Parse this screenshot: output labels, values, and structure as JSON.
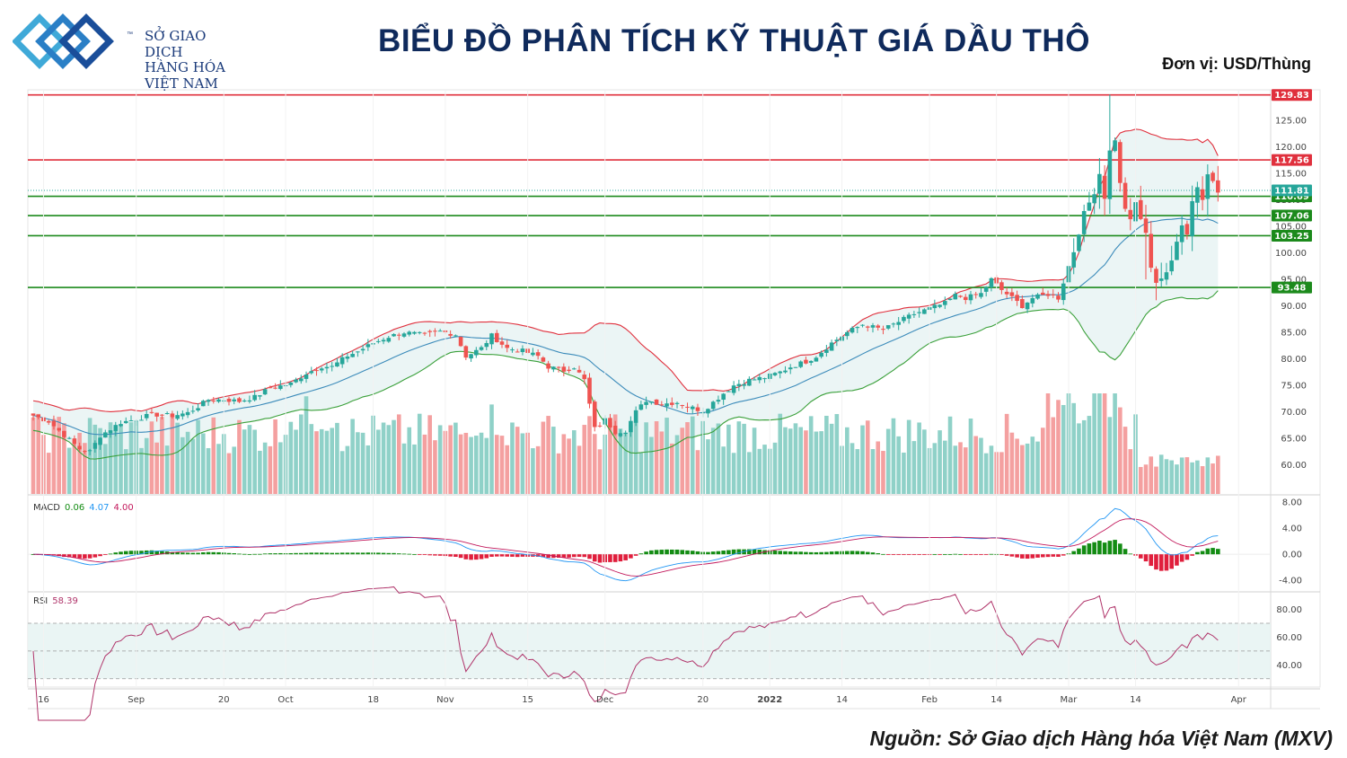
{
  "header": {
    "logo_lines": [
      "SỞ GIAO DỊCH",
      "HÀNG HÓA",
      "VIỆT NAM"
    ],
    "logo_tm": "™",
    "title": "BIỂU ĐỒ PHÂN TÍCH KỸ THUẬT GIÁ DẦU THÔ",
    "unit": "Đơn vị: USD/Thùng"
  },
  "footer": {
    "source": "Nguồn: Sở Giao dịch Hàng hóa Việt Nam (MXV)"
  },
  "colors": {
    "up": "#26a69a",
    "down": "#ef5350",
    "vol_up": "#8fd1c8",
    "vol_down": "#f4a0a0",
    "resistance": "#e0303d",
    "support": "#1c8a1c",
    "last": "#26a69a",
    "bb_upper": "#e0303d",
    "bb_lower": "#3aa03a",
    "bb_mid": "#3b8bba",
    "bb_fill": "#e6f3f2",
    "macd_line": "#2196f3",
    "signal_line": "#c2185b",
    "hist_pos": "#138c13",
    "hist_neg": "#e01e3c",
    "rsi_line": "#b0346a"
  },
  "chart_data": {
    "type": "candlestick",
    "price_axis": {
      "ticks": [
        60,
        65,
        70,
        75,
        80,
        85,
        90,
        95,
        100,
        105,
        110,
        115,
        120,
        125
      ],
      "range": [
        54.5,
        130.8
      ]
    },
    "x_axis": {
      "range": [
        0,
        235
      ],
      "tick_labels": [
        {
          "label": "16",
          "i": 2
        },
        {
          "label": "Sep",
          "i": 20
        },
        {
          "label": "20",
          "i": 37
        },
        {
          "label": "Oct",
          "i": 49
        },
        {
          "label": "18",
          "i": 66
        },
        {
          "label": "Nov",
          "i": 80
        },
        {
          "label": "15",
          "i": 96
        },
        {
          "label": "Dec",
          "i": 111
        },
        {
          "label": "20",
          "i": 130
        },
        {
          "label": "2022",
          "i": 143
        },
        {
          "label": "14",
          "i": 157
        },
        {
          "label": "Feb",
          "i": 174
        },
        {
          "label": "14",
          "i": 187
        },
        {
          "label": "Mar",
          "i": 201
        },
        {
          "label": "14",
          "i": 214
        },
        {
          "label": "Apr",
          "i": 234
        }
      ]
    },
    "horizontal_levels": [
      {
        "value": 129.83,
        "label": "129.83",
        "kind": "resistance"
      },
      {
        "value": 117.56,
        "label": "117.56",
        "kind": "resistance"
      },
      {
        "value": 110.69,
        "label": "110.69",
        "kind": "support"
      },
      {
        "value": 107.06,
        "label": "107.06",
        "kind": "support"
      },
      {
        "value": 103.25,
        "label": "103.25",
        "kind": "support"
      },
      {
        "value": 93.48,
        "label": "93.48",
        "kind": "support"
      }
    ],
    "last_price": {
      "value": 111.81,
      "label": "111.81"
    },
    "close_series_anchors": [
      [
        0,
        69.3
      ],
      [
        3,
        68.2
      ],
      [
        6,
        65.6
      ],
      [
        9,
        63.0
      ],
      [
        11,
        62.5
      ],
      [
        13,
        65.5
      ],
      [
        17,
        68.0
      ],
      [
        20,
        68.6
      ],
      [
        23,
        69.5
      ],
      [
        27,
        69.3
      ],
      [
        30,
        69.8
      ],
      [
        32,
        71.0
      ],
      [
        34,
        72.3
      ],
      [
        37,
        72.3
      ],
      [
        40,
        72.0
      ],
      [
        43,
        72.8
      ],
      [
        46,
        74.5
      ],
      [
        50,
        75.3
      ],
      [
        53,
        77.3
      ],
      [
        56,
        78.6
      ],
      [
        58,
        78.5
      ],
      [
        61,
        80.6
      ],
      [
        63,
        81.4
      ],
      [
        66,
        83.0
      ],
      [
        69,
        84.2
      ],
      [
        72,
        85.0
      ],
      [
        76,
        84.5
      ],
      [
        79,
        85.2
      ],
      [
        82,
        84.6
      ],
      [
        84,
        80.5
      ],
      [
        87,
        82.0
      ],
      [
        89,
        84.4
      ],
      [
        92,
        82.0
      ],
      [
        95,
        81.5
      ],
      [
        98,
        80.5
      ],
      [
        100,
        78.5
      ],
      [
        103,
        77.8
      ],
      [
        105,
        78.5
      ],
      [
        107,
        76.0
      ],
      [
        109,
        66.8
      ],
      [
        111,
        68.5
      ],
      [
        113,
        66.2
      ],
      [
        115,
        66.5
      ],
      [
        117,
        70.0
      ],
      [
        119,
        72.2
      ],
      [
        122,
        71.5
      ],
      [
        125,
        71.8
      ],
      [
        127,
        71.0
      ],
      [
        130,
        70.2
      ],
      [
        132,
        71.8
      ],
      [
        134,
        73.5
      ],
      [
        136,
        75.0
      ],
      [
        139,
        76.0
      ],
      [
        142,
        76.5
      ],
      [
        145,
        77.5
      ],
      [
        147,
        78.5
      ],
      [
        150,
        79.5
      ],
      [
        152,
        80.5
      ],
      [
        155,
        83.0
      ],
      [
        158,
        85.0
      ],
      [
        161,
        86.5
      ],
      [
        163,
        86.0
      ],
      [
        165,
        85.5
      ],
      [
        168,
        87.0
      ],
      [
        171,
        88.5
      ],
      [
        174,
        89.5
      ],
      [
        177,
        90.5
      ],
      [
        179,
        92.0
      ],
      [
        181,
        91.5
      ],
      [
        184,
        92.3
      ],
      [
        186,
        95.0
      ],
      [
        188,
        93.0
      ],
      [
        190,
        91.5
      ],
      [
        192,
        90.0
      ],
      [
        194,
        91.5
      ],
      [
        197,
        92.2
      ],
      [
        199,
        91.5
      ],
      [
        201,
        97.5
      ],
      [
        202,
        100.3
      ],
      [
        204,
        107.5
      ],
      [
        206,
        111.5
      ],
      [
        207,
        115.0
      ],
      [
        208,
        110.5
      ],
      [
        209,
        119.2
      ],
      [
        210,
        121.5
      ],
      [
        211,
        113.0
      ],
      [
        212,
        108.5
      ],
      [
        213,
        106.0
      ],
      [
        214,
        109.5
      ],
      [
        215,
        106.5
      ],
      [
        216,
        103.5
      ],
      [
        217,
        97.5
      ],
      [
        218,
        94.5
      ],
      [
        220,
        96.0
      ],
      [
        221,
        98.5
      ],
      [
        222,
        102.5
      ],
      [
        223,
        105.5
      ],
      [
        224,
        103.5
      ],
      [
        225,
        110.0
      ],
      [
        226,
        112.5
      ],
      [
        227,
        110.0
      ],
      [
        228,
        115.0
      ],
      [
        229,
        114.0
      ],
      [
        230,
        111.8
      ]
    ],
    "macd": {
      "label": "MACD",
      "values": [
        "0.06",
        "4.07",
        "4.00"
      ],
      "ticks": [
        -4,
        0,
        4,
        8
      ],
      "range": [
        -5.5,
        9.0
      ]
    },
    "rsi": {
      "label": "RSI",
      "value": "58.39",
      "ticks": [
        40,
        60,
        80
      ],
      "band": [
        30,
        70
      ],
      "mid": 50,
      "range": [
        24,
        92
      ]
    }
  }
}
